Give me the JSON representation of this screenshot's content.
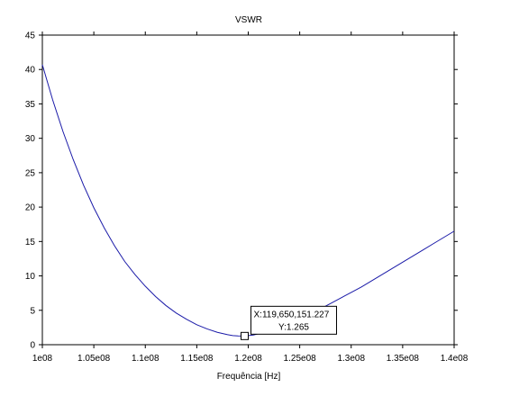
{
  "chart_data": {
    "type": "line",
    "title": "VSWR",
    "xlabel": "Frequência [Hz]",
    "ylabel": "",
    "xlim": [
      100000000,
      140000000
    ],
    "ylim": [
      0,
      45
    ],
    "x_tick_labels": [
      "1e08",
      "1.05e08",
      "1.1e08",
      "1.15e08",
      "1.2e08",
      "1.25e08",
      "1.3e08",
      "1.35e08",
      "1.4e08"
    ],
    "y_tick_labels": [
      "0",
      "5",
      "10",
      "15",
      "20",
      "25",
      "30",
      "35",
      "40",
      "45"
    ],
    "grid": false,
    "series": [
      {
        "color": "#1a1aa8",
        "x": [
          100000000,
          101000000,
          102000000,
          103000000,
          104000000,
          105000000,
          106000000,
          107000000,
          108000000,
          109000000,
          110000000,
          111000000,
          112000000,
          113000000,
          114000000,
          115000000,
          116000000,
          117000000,
          118000000,
          118500000,
          119000000,
          119650151,
          120500000,
          121000000,
          122000000,
          123000000,
          124000000,
          125000000,
          126000000,
          127000000,
          128000000,
          129000000,
          130000000,
          131000000,
          132000000,
          133000000,
          134000000,
          135000000,
          136000000,
          137000000,
          138000000,
          139000000,
          140000000
        ],
        "y": [
          40.7,
          35.6,
          31.0,
          26.9,
          23.2,
          19.9,
          17.0,
          14.4,
          12.1,
          10.2,
          8.5,
          7.0,
          5.7,
          4.6,
          3.7,
          2.9,
          2.3,
          1.8,
          1.45,
          1.33,
          1.27,
          1.265,
          1.4,
          1.6,
          2.1,
          2.6,
          3.2,
          3.8,
          4.5,
          5.2,
          6.0,
          6.8,
          7.6,
          8.4,
          9.3,
          10.2,
          11.1,
          12.0,
          12.9,
          13.8,
          14.7,
          15.6,
          16.5
        ]
      }
    ],
    "datatip": {
      "x": 119650151.227,
      "y": 1.265,
      "line1": "X:119,650,151.227",
      "line2": "Y:1.265"
    }
  }
}
